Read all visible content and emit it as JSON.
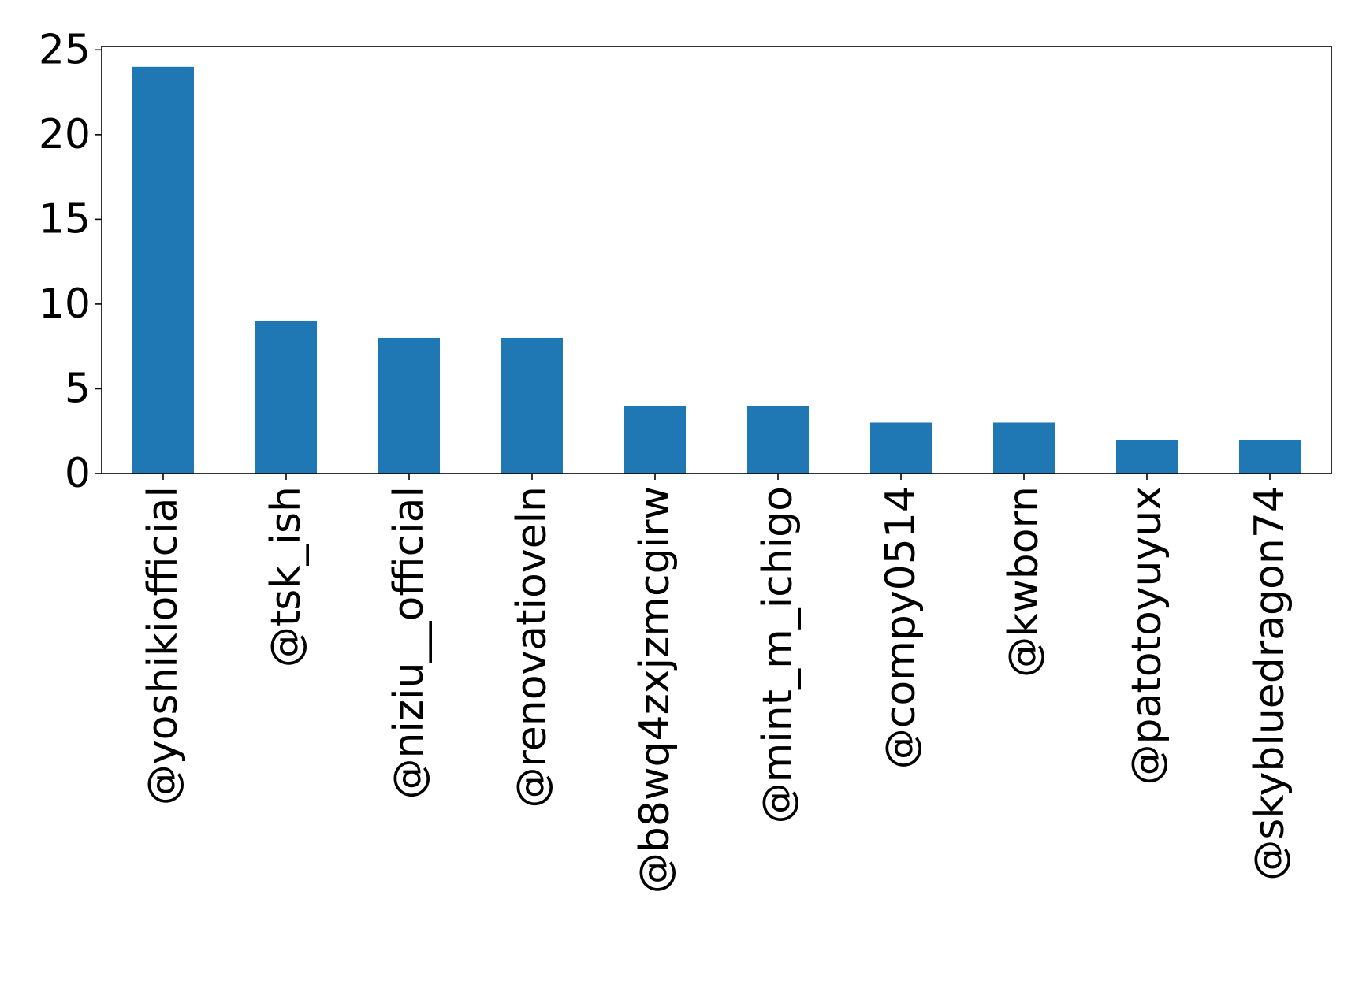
{
  "chart_data": {
    "type": "bar",
    "title": "",
    "xlabel": "",
    "ylabel": "",
    "categories": [
      "@yoshikiofficial",
      "@tsk_ish",
      "@niziu__official",
      "@renovatioveln",
      "@b8wq4zxjzmcgirw",
      "@mint_m_ichigo",
      "@compy0514",
      "@kwborn",
      "@patotoyuyux",
      "@skybluedragon74"
    ],
    "values": [
      24,
      9,
      8,
      8,
      4,
      4,
      3,
      3,
      2,
      2
    ],
    "ylim": [
      0,
      25.2
    ],
    "yticks": [
      0,
      5,
      10,
      15,
      20,
      25
    ],
    "bar_color": "#1f77b4",
    "grid": false,
    "legend": "none"
  }
}
